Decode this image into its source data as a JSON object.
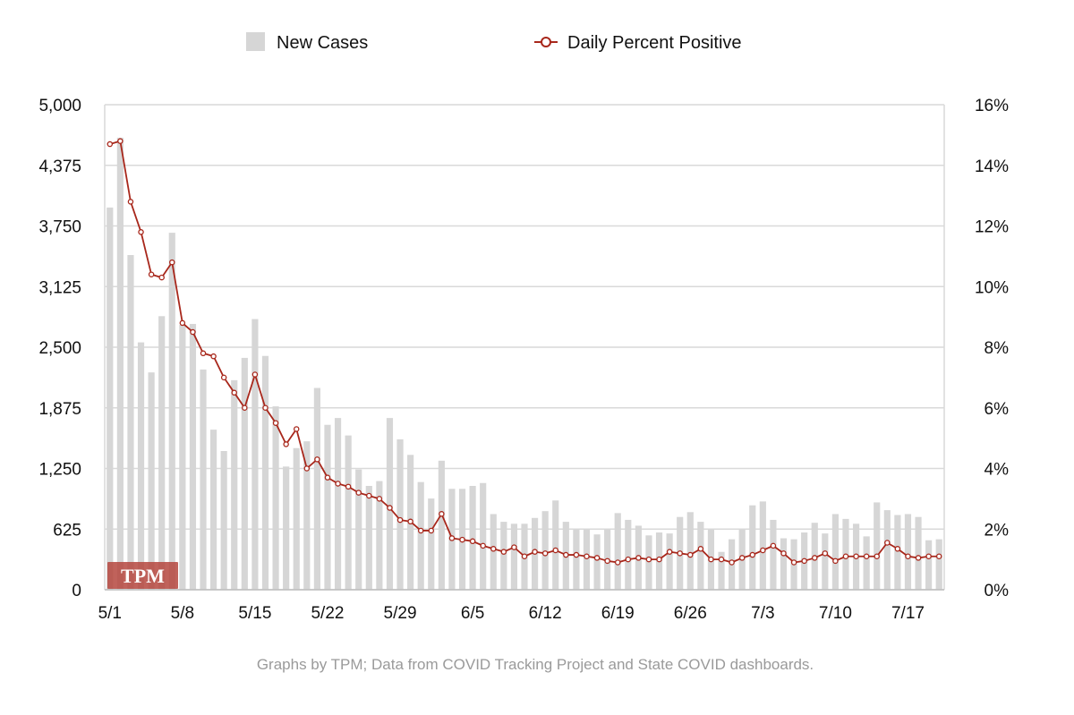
{
  "colors": {
    "bar": "#d6d6d6",
    "line": "#a8271b",
    "grid": "#d9d9d9",
    "axis_text": "#111111",
    "footer_text": "#9a9a9a",
    "logo_bg": "#b5473e"
  },
  "logo": {
    "text": "TPM"
  },
  "footer": {
    "text": "Graphs by TPM; Data from COVID Tracking Project and State COVID dashboards."
  },
  "chart_data": {
    "type": "bar+line",
    "title": "",
    "legend": [
      {
        "name": "New Cases",
        "kind": "bar-swatch"
      },
      {
        "name": "Daily Percent Positive",
        "kind": "line-marker"
      }
    ],
    "legend_position": "top-center",
    "grid": true,
    "x_tick_labels": [
      "5/1",
      "5/8",
      "5/15",
      "5/22",
      "5/29",
      "6/5",
      "6/12",
      "6/19",
      "6/26",
      "7/3",
      "7/10",
      "7/17"
    ],
    "y_left": {
      "label": "",
      "range": [
        0,
        5000
      ],
      "ticks": [
        "0",
        "625",
        "1,250",
        "1,875",
        "2,500",
        "3,125",
        "3,750",
        "4,375",
        "5,000"
      ]
    },
    "y_right": {
      "label": "",
      "range": [
        0,
        16
      ],
      "ticks": [
        "0%",
        "2%",
        "4%",
        "6%",
        "8%",
        "10%",
        "12%",
        "14%",
        "16%"
      ]
    },
    "x_start_date": "5/1",
    "series": [
      {
        "name": "New Cases",
        "kind": "bar",
        "axis": "left",
        "values": [
          3940,
          4660,
          3450,
          2550,
          2240,
          2820,
          3680,
          2730,
          2740,
          2270,
          1650,
          1430,
          2160,
          2390,
          2790,
          2410,
          1890,
          1270,
          1460,
          1530,
          2080,
          1700,
          1770,
          1590,
          1240,
          1070,
          1120,
          1770,
          1550,
          1390,
          1110,
          940,
          1330,
          1040,
          1040,
          1070,
          1100,
          780,
          700,
          680,
          680,
          740,
          810,
          920,
          700,
          620,
          620,
          570,
          620,
          790,
          720,
          660,
          560,
          590,
          580,
          750,
          800,
          700,
          620,
          390,
          520,
          620,
          870,
          910,
          720,
          530,
          520,
          590,
          690,
          580,
          780,
          730,
          680,
          550,
          900,
          820,
          770,
          780,
          750,
          510,
          520
        ]
      },
      {
        "name": "Daily Percent Positive",
        "kind": "line",
        "axis": "right",
        "values": [
          14.7,
          14.8,
          12.8,
          11.8,
          10.4,
          10.3,
          10.8,
          8.8,
          8.5,
          7.8,
          7.7,
          7.0,
          6.5,
          6.0,
          7.1,
          6.0,
          5.5,
          4.8,
          5.3,
          4.0,
          4.3,
          3.7,
          3.5,
          3.4,
          3.2,
          3.1,
          3.0,
          2.7,
          2.3,
          2.25,
          1.95,
          1.95,
          2.5,
          1.7,
          1.65,
          1.6,
          1.45,
          1.35,
          1.25,
          1.4,
          1.1,
          1.25,
          1.2,
          1.3,
          1.15,
          1.15,
          1.1,
          1.05,
          0.95,
          0.9,
          1.0,
          1.05,
          1.0,
          1.0,
          1.25,
          1.2,
          1.15,
          1.35,
          1.0,
          1.0,
          0.9,
          1.05,
          1.15,
          1.3,
          1.45,
          1.2,
          0.9,
          0.95,
          1.05,
          1.2,
          0.95,
          1.1,
          1.1,
          1.1,
          1.1,
          1.55,
          1.35,
          1.1,
          1.05,
          1.1,
          1.1
        ]
      }
    ]
  }
}
